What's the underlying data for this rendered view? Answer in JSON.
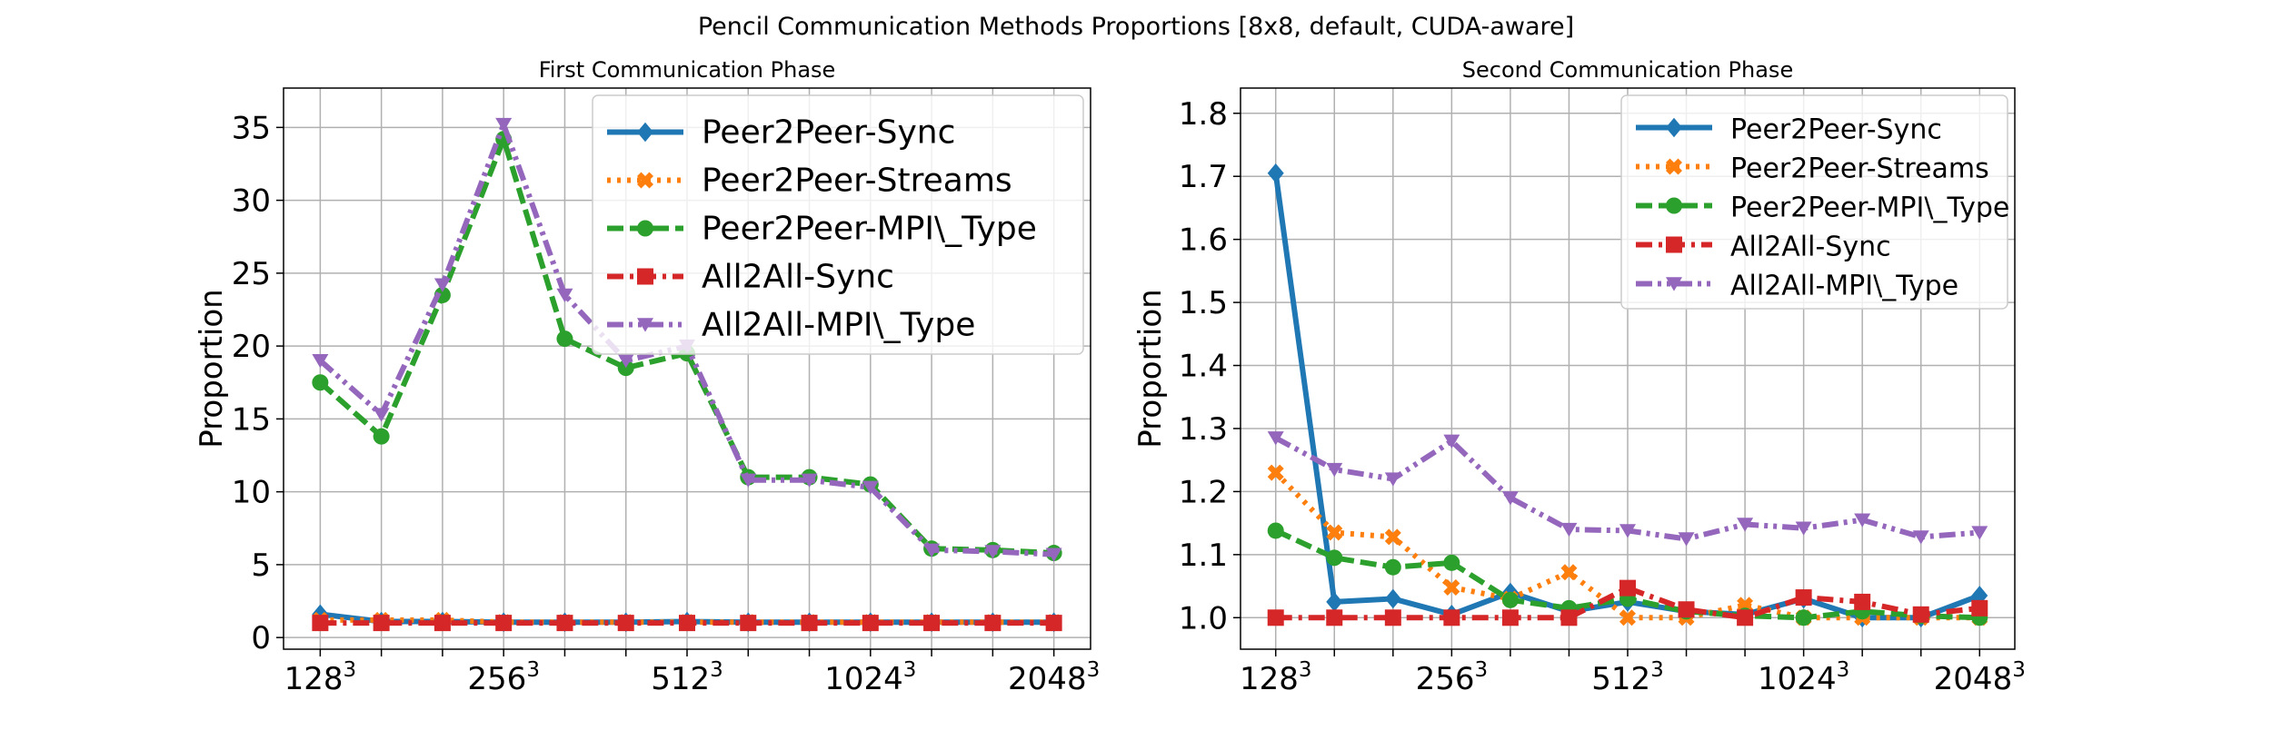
{
  "figure": {
    "suptitle": "Pencil Communication Methods Proportions [8x8, default, CUDA-aware]"
  },
  "x_ticks": [
    {
      "base": "128",
      "exp": "3",
      "pos": 0
    },
    {
      "base": "256",
      "exp": "3",
      "pos": 3
    },
    {
      "base": "512",
      "exp": "3",
      "pos": 6
    },
    {
      "base": "1024",
      "exp": "3",
      "pos": 9
    },
    {
      "base": "2048",
      "exp": "3",
      "pos": 12
    }
  ],
  "series_style": [
    {
      "color": "#1f77b4",
      "marker": "diamond",
      "dash": "solid"
    },
    {
      "color": "#ff7f0e",
      "marker": "x",
      "dash": "dotted"
    },
    {
      "color": "#2ca02c",
      "marker": "circle",
      "dash": "dashed"
    },
    {
      "color": "#d62728",
      "marker": "square",
      "dash": "dashdot"
    },
    {
      "color": "#9467bd",
      "marker": "triangle-down",
      "dash": "dashdotdot"
    }
  ],
  "chart_data": [
    {
      "type": "line",
      "title": "First Communication Phase",
      "xlabel": "",
      "ylabel": "Proportion",
      "x": [
        0,
        1,
        2,
        3,
        4,
        5,
        6,
        7,
        8,
        9,
        10,
        11,
        12
      ],
      "xlim": [
        -0.6,
        12.6
      ],
      "ylim": [
        -0.8,
        37.7
      ],
      "yticks": [
        0,
        5,
        10,
        15,
        20,
        25,
        30,
        35
      ],
      "grid": true,
      "legend_position": "top-right",
      "series": [
        {
          "name": "Peer2Peer-Sync",
          "values": [
            1.6,
            1.1,
            1.1,
            1.05,
            1.05,
            1.05,
            1.1,
            1.05,
            1.05,
            1.05,
            1.05,
            1.05,
            1.05
          ]
        },
        {
          "name": "Peer2Peer-Streams",
          "values": [
            1.2,
            1.2,
            1.2,
            1.05,
            1.05,
            1.05,
            1.05,
            1.05,
            1.05,
            1.05,
            1.05,
            1.05,
            1.05
          ]
        },
        {
          "name": "Peer2Peer-MPI\\_Type",
          "values": [
            17.5,
            13.8,
            23.5,
            34.2,
            20.5,
            18.5,
            19.5,
            11.0,
            11.0,
            10.5,
            6.1,
            6.0,
            5.8
          ]
        },
        {
          "name": "All2All-Sync",
          "values": [
            1.0,
            1.0,
            1.0,
            1.0,
            1.0,
            1.0,
            1.0,
            1.0,
            1.0,
            1.0,
            1.0,
            1.0,
            1.0
          ]
        },
        {
          "name": "All2All-MPI\\_Type",
          "values": [
            19.0,
            15.3,
            24.2,
            35.2,
            23.5,
            19.0,
            20.0,
            10.8,
            10.8,
            10.3,
            6.0,
            5.9,
            5.7
          ]
        }
      ]
    },
    {
      "type": "line",
      "title": "Second Communication Phase",
      "xlabel": "",
      "ylabel": "Proportion",
      "x": [
        0,
        1,
        2,
        3,
        4,
        5,
        6,
        7,
        8,
        9,
        10,
        11,
        12
      ],
      "xlim": [
        -0.6,
        12.6
      ],
      "ylim": [
        0.95,
        1.84
      ],
      "yticks": [
        1.0,
        1.1,
        1.2,
        1.3,
        1.4,
        1.5,
        1.6,
        1.7,
        1.8
      ],
      "grid": true,
      "legend_position": "top-right",
      "series": [
        {
          "name": "Peer2Peer-Sync",
          "values": [
            1.705,
            1.025,
            1.03,
            1.005,
            1.04,
            1.01,
            1.025,
            1.01,
            1.005,
            1.03,
            1.0,
            1.0,
            1.035
          ]
        },
        {
          "name": "Peer2Peer-Streams",
          "values": [
            1.23,
            1.135,
            1.128,
            1.048,
            1.03,
            1.072,
            1.0,
            1.0,
            1.02,
            1.0,
            1.0,
            1.0,
            1.0
          ]
        },
        {
          "name": "Peer2Peer-MPI\\_Type",
          "values": [
            1.138,
            1.095,
            1.08,
            1.087,
            1.028,
            1.015,
            1.03,
            1.01,
            1.003,
            1.0,
            1.01,
            1.003,
            1.0
          ]
        },
        {
          "name": "All2All-Sync",
          "values": [
            1.0,
            1.0,
            1.0,
            1.0,
            1.0,
            1.0,
            1.047,
            1.013,
            1.0,
            1.032,
            1.025,
            1.005,
            1.015
          ]
        },
        {
          "name": "All2All-MPI\\_Type",
          "values": [
            1.285,
            1.235,
            1.22,
            1.28,
            1.19,
            1.14,
            1.138,
            1.125,
            1.148,
            1.142,
            1.155,
            1.128,
            1.135
          ]
        }
      ]
    }
  ]
}
